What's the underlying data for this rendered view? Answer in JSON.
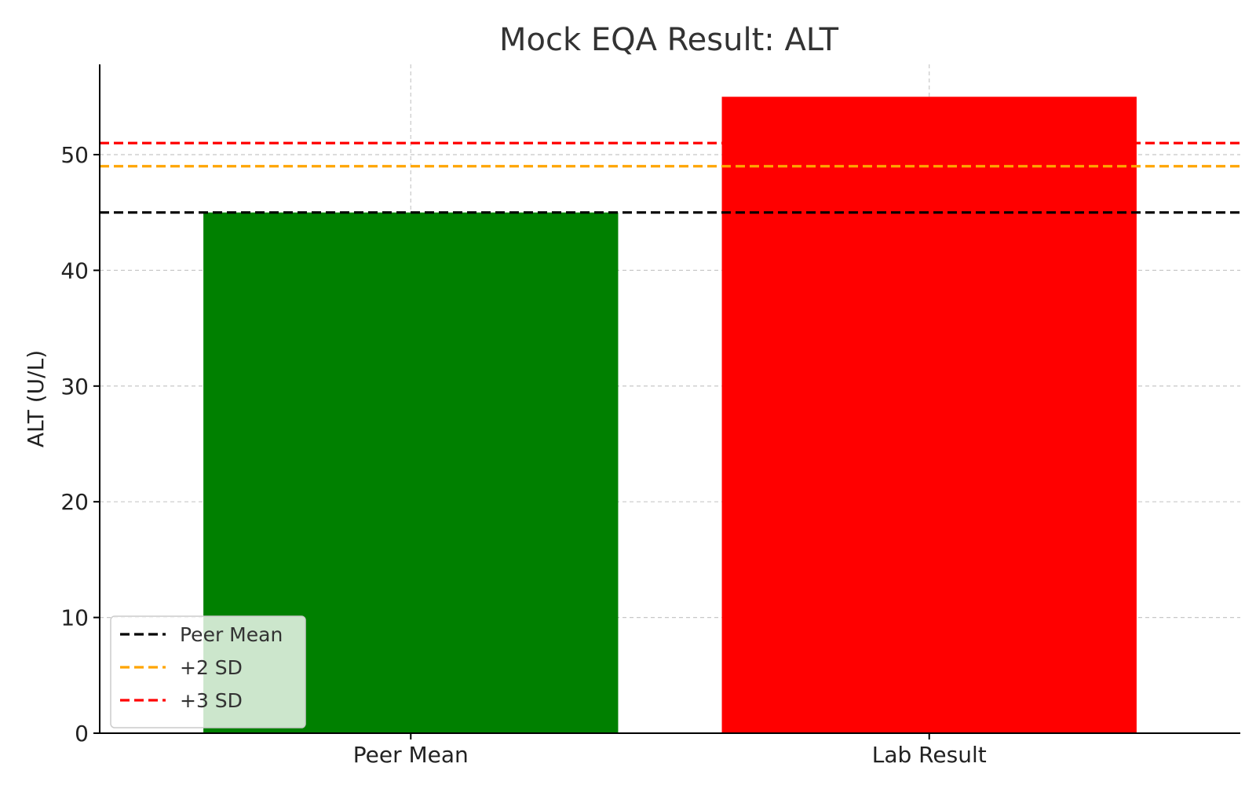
{
  "chart_data": {
    "type": "bar",
    "title": "Mock EQA Result: ALT",
    "xlabel": "",
    "ylabel": "ALT (U/L)",
    "categories": [
      "Peer Mean",
      "Lab Result"
    ],
    "values": [
      45,
      55
    ],
    "bar_colors": [
      "#008000",
      "#ff0000"
    ],
    "ylim": [
      0,
      57.8
    ],
    "yticks": [
      0,
      10,
      20,
      30,
      40,
      50
    ],
    "grid": true,
    "reference_lines": [
      {
        "name": "Peer Mean",
        "value": 45,
        "color": "#000000",
        "style": "dashed"
      },
      {
        "name": "+2 SD",
        "value": 49,
        "color": "#ffa500",
        "style": "dashed"
      },
      {
        "name": "+3 SD",
        "value": 51,
        "color": "#ff0000",
        "style": "dashed"
      }
    ],
    "legend": {
      "position": "lower-left",
      "entries": [
        "Peer Mean",
        "+2 SD",
        "+3 SD"
      ]
    }
  }
}
